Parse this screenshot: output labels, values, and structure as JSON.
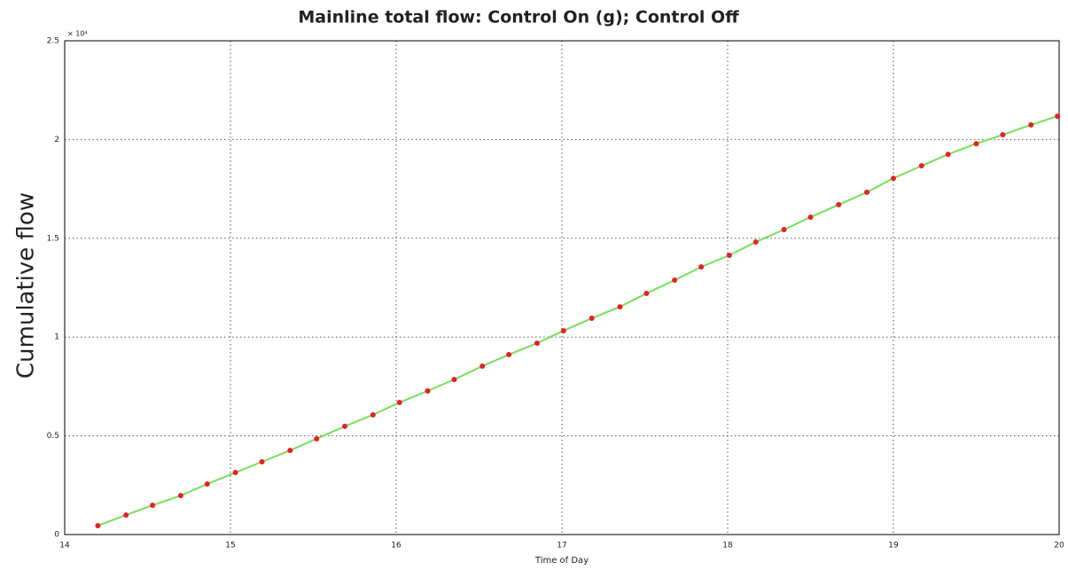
{
  "chart_data": {
    "type": "line",
    "title": "Mainline total flow: Control On (g); Control Off",
    "x_label": "Time of Day",
    "y_label": "Cumulative flow",
    "y_scale_label": "× 10⁴",
    "x": [
      14.2,
      14.37,
      14.53,
      14.7,
      14.86,
      15.03,
      15.19,
      15.36,
      15.52,
      15.69,
      15.86,
      16.02,
      16.19,
      16.35,
      16.52,
      16.68,
      16.85,
      17.01,
      17.18,
      17.35,
      17.51,
      17.68,
      17.84,
      18.01,
      18.17,
      18.34,
      18.5,
      18.67,
      18.84,
      19.0,
      19.17,
      19.33,
      19.5,
      19.66,
      19.83,
      19.99
    ],
    "values": [
      450,
      990,
      1480,
      1970,
      2560,
      3140,
      3680,
      4260,
      4850,
      5480,
      6060,
      6690,
      7270,
      7850,
      8530,
      9110,
      9690,
      10320,
      10950,
      11530,
      12210,
      12880,
      13550,
      14140,
      14810,
      15440,
      16070,
      16700,
      17330,
      18040,
      18670,
      19250,
      19790,
      20240,
      20740,
      21180
    ],
    "color": "#77e05a",
    "marker_color": "#e8202a",
    "xlim": [
      14,
      20
    ],
    "xticks": [
      14,
      15,
      16,
      17,
      18,
      19,
      20
    ],
    "ylim": [
      0,
      25000
    ],
    "yticks": [
      0,
      {
        "value": 5000,
        "label": "0.5"
      },
      {
        "value": 10000,
        "label": "1"
      },
      {
        "value": 15000,
        "label": "1.5"
      },
      {
        "value": 20000,
        "label": "2"
      },
      {
        "value": 25000,
        "label": "2.5"
      }
    ],
    "grid": true
  }
}
